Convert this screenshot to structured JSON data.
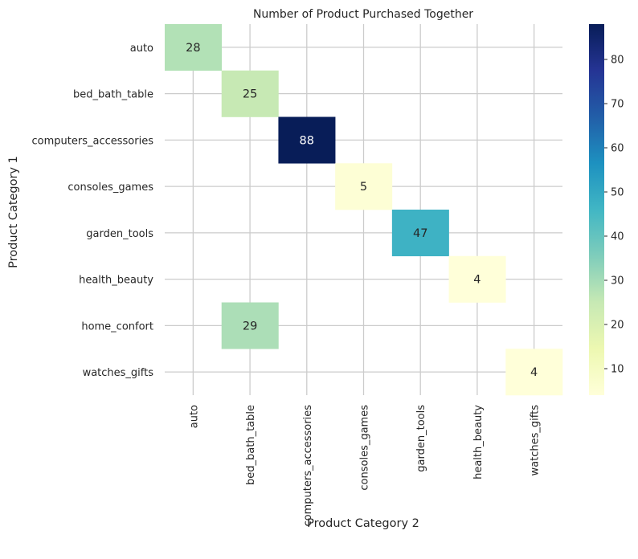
{
  "chart_data": {
    "type": "heatmap",
    "title": "Number of Product Purchased Together",
    "xlabel": "Product Category 2",
    "ylabel": "Product Category 1",
    "x_categories": [
      "auto",
      "bed_bath_table",
      "computers_accessories",
      "consoles_games",
      "garden_tools",
      "health_beauty",
      "watches_gifts"
    ],
    "y_categories": [
      "auto",
      "bed_bath_table",
      "computers_accessories",
      "consoles_games",
      "garden_tools",
      "health_beauty",
      "home_confort",
      "watches_gifts"
    ],
    "cells": [
      {
        "y": "auto",
        "x": "auto",
        "value": 28
      },
      {
        "y": "bed_bath_table",
        "x": "bed_bath_table",
        "value": 25
      },
      {
        "y": "computers_accessories",
        "x": "computers_accessories",
        "value": 88
      },
      {
        "y": "consoles_games",
        "x": "consoles_games",
        "value": 5
      },
      {
        "y": "garden_tools",
        "x": "garden_tools",
        "value": 47
      },
      {
        "y": "health_beauty",
        "x": "health_beauty",
        "value": 4
      },
      {
        "y": "home_confort",
        "x": "bed_bath_table",
        "value": 29
      },
      {
        "y": "watches_gifts",
        "x": "watches_gifts",
        "value": 4
      }
    ],
    "colorbar": {
      "colormap": "YlGnBu",
      "range": [
        4,
        88
      ],
      "ticks": [
        10,
        20,
        30,
        40,
        50,
        60,
        70,
        80
      ]
    },
    "grid": true
  }
}
